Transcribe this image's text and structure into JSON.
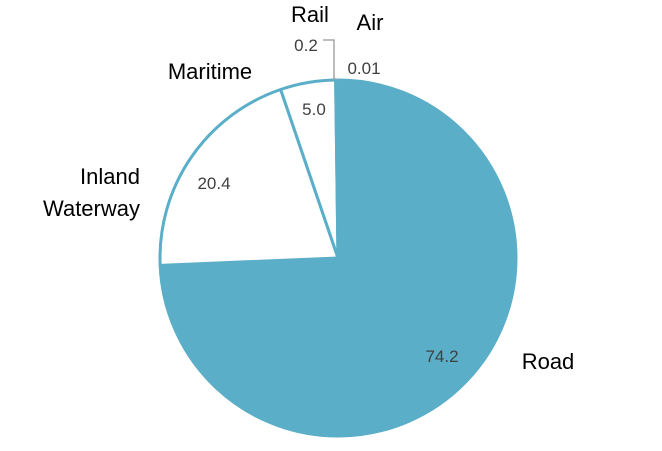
{
  "chart_data": {
    "type": "pie",
    "title": "",
    "categories": [
      "Road",
      "Inland Waterway",
      "Maritime",
      "Rail",
      "Air"
    ],
    "values": [
      74.2,
      20.4,
      5.0,
      0.2,
      0.01
    ],
    "value_labels": [
      "74.2",
      "20.4",
      "5.0",
      "0.2",
      "0.01"
    ],
    "category_labels": [
      {
        "lines": [
          "Road"
        ]
      },
      {
        "lines": [
          "Inland",
          "Waterway"
        ]
      },
      {
        "lines": [
          "Maritime"
        ]
      },
      {
        "lines": [
          "Rail"
        ]
      },
      {
        "lines": [
          "Air"
        ]
      }
    ],
    "fills": [
      "#5aaec8",
      "#ffffff",
      "#ffffff",
      "#ffffff",
      "#ffffff"
    ],
    "stroke": "#5aaec8",
    "leader_color": "#a6a6a6",
    "legend": "none"
  }
}
